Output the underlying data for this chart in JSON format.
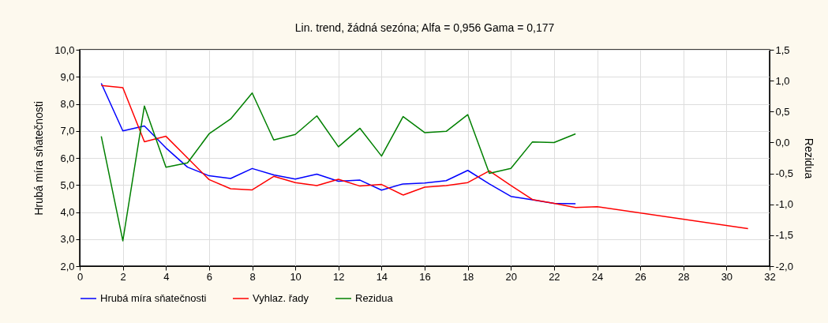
{
  "chart_data": {
    "type": "line",
    "title": "Lin. trend, žádná sezóna; Alfa = 0,956 Gama = 0,177",
    "ylabel": "Hrubá míra sňatečnosti",
    "y2label": "Rezidua",
    "xlim": [
      0,
      32
    ],
    "xticks": [
      0,
      2,
      4,
      6,
      8,
      10,
      12,
      14,
      16,
      18,
      20,
      22,
      24,
      26,
      28,
      30,
      32
    ],
    "ylim": [
      2,
      10
    ],
    "yticks": [
      {
        "value": 2,
        "label": "2,0"
      },
      {
        "value": 3,
        "label": "3,0"
      },
      {
        "value": 4,
        "label": "4,0"
      },
      {
        "value": 5,
        "label": "5,0"
      },
      {
        "value": 6,
        "label": "6,0"
      },
      {
        "value": 7,
        "label": "7,0"
      },
      {
        "value": 8,
        "label": "8,0"
      },
      {
        "value": 9,
        "label": "9,0"
      },
      {
        "value": 10,
        "label": "10,0"
      }
    ],
    "y2lim": [
      -2,
      1.5
    ],
    "y2ticks": [
      {
        "value": -2,
        "label": "-2,0"
      },
      {
        "value": -1.5,
        "label": "-1,5"
      },
      {
        "value": -1,
        "label": "-1,0"
      },
      {
        "value": -0.5,
        "label": "-0,5"
      },
      {
        "value": 0,
        "label": "0,0"
      },
      {
        "value": 0.5,
        "label": "0,5"
      },
      {
        "value": 1,
        "label": "1,0"
      },
      {
        "value": 1.5,
        "label": "1,5"
      }
    ],
    "grid": true,
    "legend": "bottom",
    "marker": "none",
    "line_style": "solid",
    "series": [
      {
        "name": "Hrubá míra sňatečnosti",
        "color": "#0000ff",
        "x": [
          1,
          2,
          3,
          4,
          5,
          6,
          7,
          8,
          9,
          10,
          11,
          12,
          13,
          14,
          15,
          16,
          17,
          18,
          19,
          20,
          21,
          22,
          23
        ],
        "values": [
          8.76,
          7.0,
          7.18,
          6.37,
          5.66,
          5.34,
          5.24,
          5.61,
          5.37,
          5.22,
          5.4,
          5.14,
          5.18,
          4.81,
          5.04,
          5.07,
          5.16,
          5.54,
          5.04,
          4.58,
          4.45,
          4.32,
          4.31
        ]
      },
      {
        "name": "Vyhlaz. řady",
        "color": "#ff0000",
        "x": [
          1,
          2,
          3,
          4,
          5,
          6,
          7,
          8,
          9,
          10,
          11,
          12,
          13,
          14,
          15,
          16,
          17,
          18,
          19,
          20,
          21,
          22,
          23,
          24,
          31
        ],
        "values": [
          8.68,
          8.6,
          6.6,
          6.8,
          6.0,
          5.2,
          4.86,
          4.82,
          5.32,
          5.09,
          4.98,
          5.21,
          4.96,
          5.02,
          4.63,
          4.92,
          4.98,
          5.09,
          5.52,
          4.98,
          4.46,
          4.32,
          4.17,
          4.2,
          3.39
        ]
      },
      {
        "name": "Rezidua",
        "color": "#008000",
        "axis": "y2",
        "x": [
          1,
          2,
          3,
          4,
          5,
          6,
          7,
          8,
          9,
          10,
          11,
          12,
          13,
          14,
          15,
          16,
          17,
          18,
          19,
          20,
          21,
          22,
          23
        ],
        "values": [
          0.1,
          -1.59,
          0.59,
          -0.4,
          -0.33,
          0.14,
          0.38,
          0.8,
          0.04,
          0.13,
          0.43,
          -0.07,
          0.23,
          -0.22,
          0.42,
          0.16,
          0.18,
          0.45,
          -0.5,
          -0.42,
          0.01,
          0.0,
          0.14
        ]
      }
    ]
  }
}
